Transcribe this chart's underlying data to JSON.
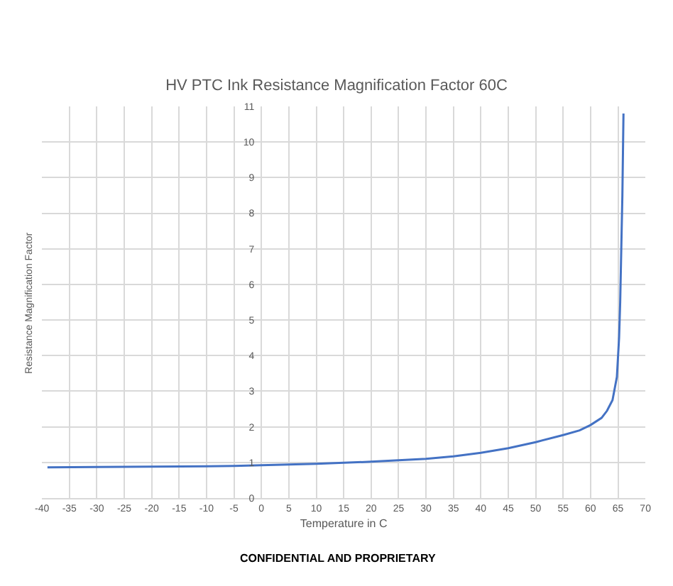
{
  "chart_data": {
    "type": "line",
    "title": "HV PTC Ink Resistance Magnification Factor 60C",
    "xlabel": "Temperature in C",
    "ylabel": "Resistance Magnification Factor",
    "x": [
      -39,
      -30,
      -20,
      -10,
      -5,
      0,
      5,
      10,
      15,
      20,
      25,
      30,
      35,
      40,
      45,
      50,
      55,
      58,
      60,
      62,
      63,
      64,
      64.8,
      65.2,
      65.4,
      65.6,
      65.8,
      66
    ],
    "series": [
      {
        "color": "#4472c4",
        "values": [
          0.86,
          0.87,
          0.88,
          0.89,
          0.9,
          0.92,
          0.94,
          0.96,
          0.99,
          1.02,
          1.06,
          1.1,
          1.17,
          1.27,
          1.4,
          1.57,
          1.77,
          1.9,
          2.05,
          2.25,
          2.45,
          2.75,
          3.4,
          4.5,
          5.5,
          7,
          8.5,
          10.8
        ]
      }
    ],
    "xlim": [
      -40,
      70
    ],
    "xticks": [
      -40,
      -35,
      -30,
      -25,
      -20,
      -15,
      -10,
      -5,
      0,
      5,
      10,
      15,
      20,
      25,
      30,
      35,
      40,
      45,
      50,
      55,
      60,
      65,
      70
    ],
    "ylim": [
      0,
      11
    ],
    "yticks": [
      0,
      1,
      2,
      3,
      4,
      5,
      6,
      7,
      8,
      9,
      10,
      11
    ],
    "grid": true,
    "marker": "none",
    "line_style": "solid",
    "annotations": [
      "CONFIDENTIAL AND PROPRIETARY"
    ]
  }
}
